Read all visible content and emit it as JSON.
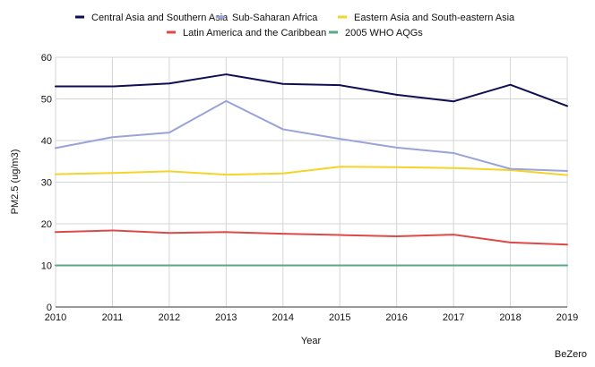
{
  "brand": "BeZero",
  "chart_data": {
    "type": "line",
    "title": "",
    "xlabel": "Year",
    "ylabel": "PM2.5  (ug/m3)",
    "x": [
      2010,
      2011,
      2012,
      2013,
      2014,
      2015,
      2016,
      2017,
      2018,
      2019
    ],
    "ylim": [
      0,
      60
    ],
    "yticks": [
      0,
      10,
      20,
      30,
      40,
      50,
      60
    ],
    "grid": true,
    "legend_position": "top",
    "series": [
      {
        "name": "Central Asia and Southern Asia",
        "color": "#0d0f52",
        "values": [
          53.0,
          53.0,
          53.7,
          55.9,
          53.6,
          53.3,
          51.0,
          49.4,
          53.4,
          48.3
        ]
      },
      {
        "name": "Sub-Saharan Africa",
        "color": "#9aa3d8",
        "values": [
          38.2,
          40.8,
          41.9,
          49.5,
          42.7,
          40.4,
          38.3,
          37.0,
          33.2,
          32.7
        ]
      },
      {
        "name": "Eastern Asia and South-eastern Asia",
        "color": "#f5d328",
        "values": [
          31.9,
          32.2,
          32.6,
          31.8,
          32.1,
          33.7,
          33.6,
          33.4,
          32.9,
          31.7
        ]
      },
      {
        "name": "Latin America and the Caribbean",
        "color": "#e04848",
        "values": [
          18.0,
          18.4,
          17.8,
          18.0,
          17.6,
          17.3,
          17.0,
          17.4,
          15.5,
          15.0
        ]
      },
      {
        "name": "2005 WHO AQGs",
        "color": "#5aa887",
        "values": [
          10,
          10,
          10,
          10,
          10,
          10,
          10,
          10,
          10,
          10
        ]
      }
    ]
  }
}
